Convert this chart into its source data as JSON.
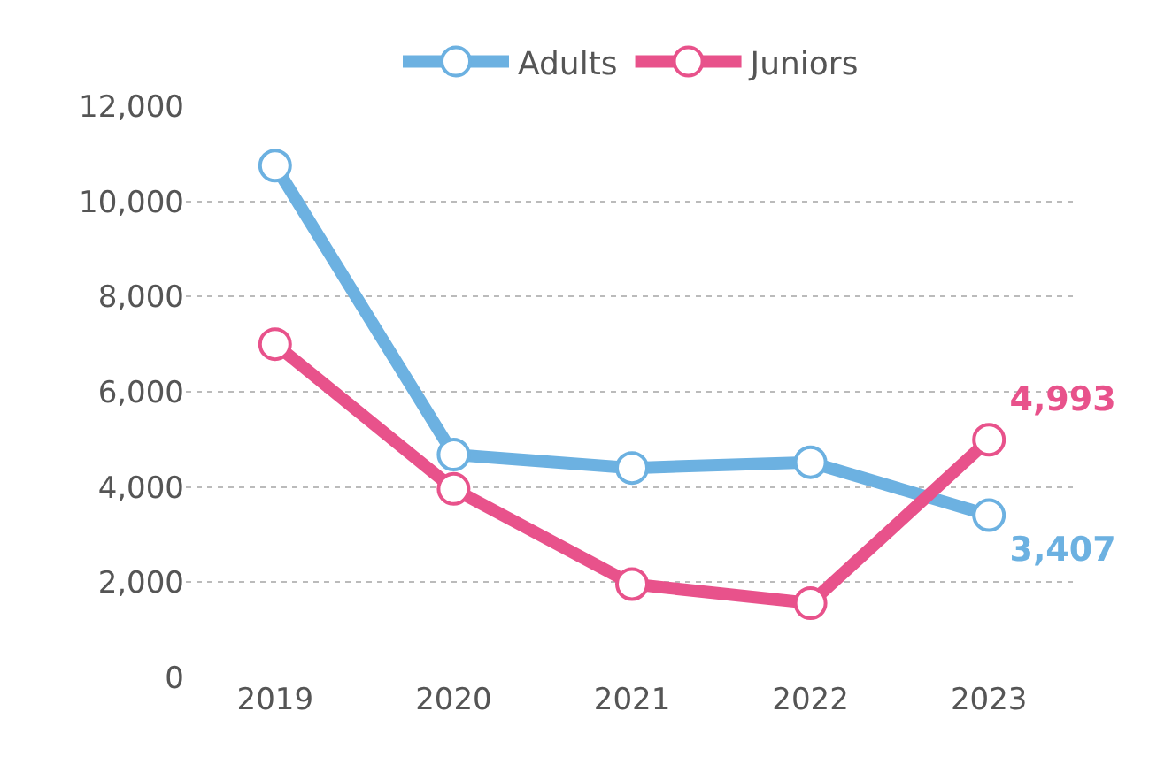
{
  "chart_data": {
    "type": "line",
    "categories": [
      "2019",
      "2020",
      "2021",
      "2022",
      "2023"
    ],
    "series": [
      {
        "name": "Adults",
        "color": "#6cb1e1",
        "values": [
          10750,
          4680,
          4400,
          4520,
          3407
        ],
        "value_labels": [
          null,
          null,
          null,
          null,
          "3,407"
        ]
      },
      {
        "name": "Juniors",
        "color": "#e8528b",
        "values": [
          7000,
          3960,
          1960,
          1560,
          4993
        ],
        "value_labels": [
          null,
          null,
          null,
          null,
          "4,993"
        ]
      }
    ],
    "ylim": [
      0,
      12000
    ],
    "yticks": [
      {
        "value": 0,
        "label": "0"
      },
      {
        "value": 2000,
        "label": "2,000"
      },
      {
        "value": 4000,
        "label": "4,000"
      },
      {
        "value": 6000,
        "label": "6,000"
      },
      {
        "value": 8000,
        "label": "8,000"
      },
      {
        "value": 10000,
        "label": "10,000"
      },
      {
        "value": 12000,
        "label": "12,000"
      }
    ],
    "grid": "y",
    "legend": "top",
    "marker": "circle",
    "line_style": "solid"
  }
}
